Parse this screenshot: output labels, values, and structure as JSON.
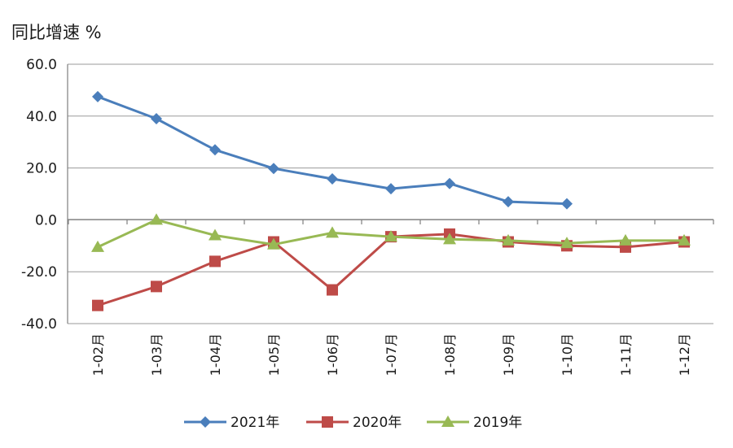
{
  "chart_data": {
    "type": "line",
    "title": "同比增速 %",
    "categories": [
      "1-02月",
      "1-03月",
      "1-04月",
      "1-05月",
      "1-06月",
      "1-07月",
      "1-08月",
      "1-09月",
      "1-10月",
      "1-11月",
      "1-12月"
    ],
    "yticks": [
      "60.0",
      "40.0",
      "20.0",
      "0.0",
      "-20.0",
      "-40.0"
    ],
    "ylim": [
      -40,
      60
    ],
    "grid": true,
    "legend_position": "bottom",
    "series": [
      {
        "name": "2021年",
        "color": "#4a7ebb",
        "marker": "diamond",
        "values": [
          47.5,
          39,
          27,
          19.8,
          15.8,
          12,
          14,
          7,
          6.2,
          null,
          null
        ]
      },
      {
        "name": "2020年",
        "color": "#be4b48",
        "marker": "square",
        "values": [
          -33,
          -25.7,
          -16,
          -8.5,
          -27,
          -6.5,
          -5.5,
          -8.5,
          -10,
          -10.5,
          -8.5
        ]
      },
      {
        "name": "2019年",
        "color": "#98b954",
        "marker": "triangle",
        "values": [
          -10.5,
          0,
          -6,
          -9.5,
          -5,
          -6.5,
          -7.5,
          -8,
          -9,
          -8,
          -8
        ]
      }
    ]
  }
}
